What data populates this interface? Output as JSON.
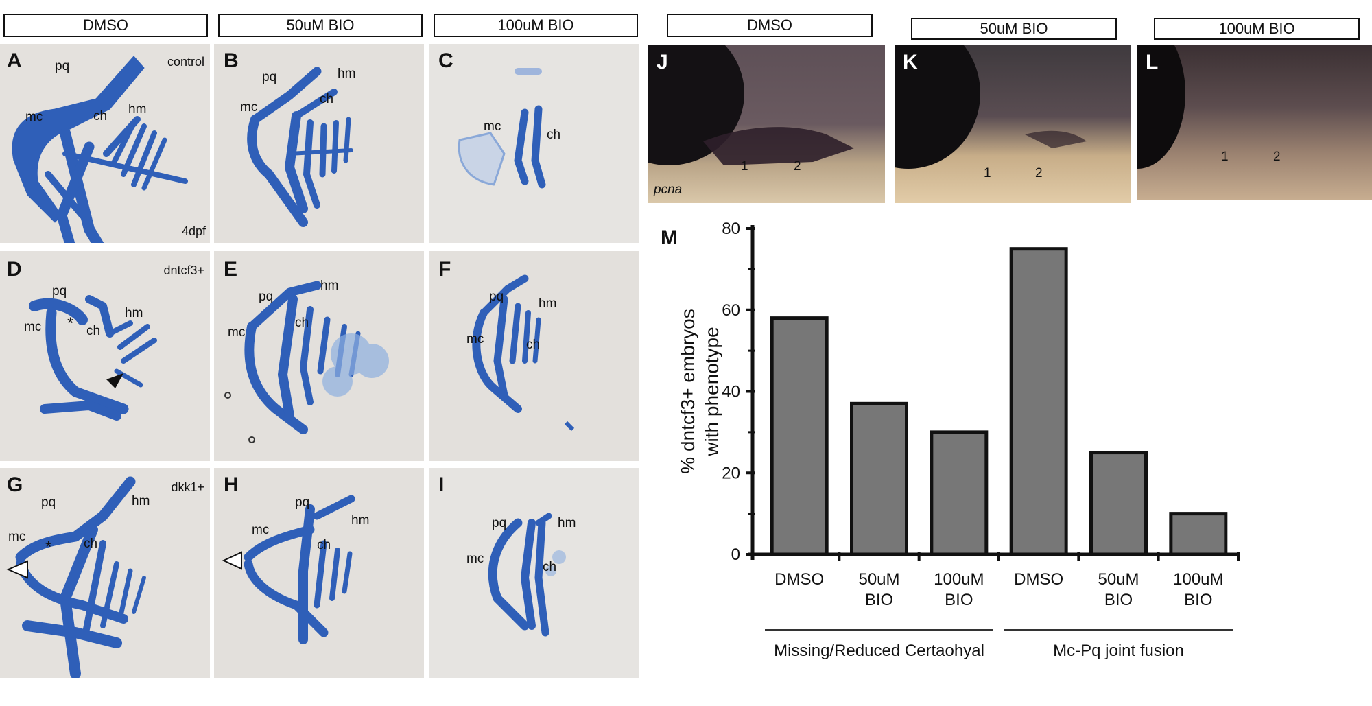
{
  "left_headers": [
    "DMSO",
    "50uM BIO",
    "100uM BIO"
  ],
  "right_headers": [
    "DMSO",
    "50uM BIO",
    "100uM BIO"
  ],
  "panels": {
    "A": {
      "label": "A",
      "tags": [
        "pq",
        "hm",
        "mc",
        "ch"
      ],
      "corner_top": "control",
      "corner_bottom": "4dpf"
    },
    "B": {
      "label": "B",
      "tags": [
        "pq",
        "hm",
        "mc",
        "ch"
      ]
    },
    "C": {
      "label": "C",
      "tags": [
        "mc",
        "ch"
      ]
    },
    "D": {
      "label": "D",
      "tags": [
        "pq",
        "hm",
        "mc",
        "ch",
        "*"
      ],
      "corner_top": "dntcf3+"
    },
    "E": {
      "label": "E",
      "tags": [
        "pq",
        "hm",
        "mc",
        "ch"
      ]
    },
    "F": {
      "label": "F",
      "tags": [
        "pq",
        "hm",
        "mc",
        "ch"
      ]
    },
    "G": {
      "label": "G",
      "tags": [
        "pq",
        "hm",
        "mc",
        "ch",
        "*"
      ],
      "corner_top": "dkk1+"
    },
    "H": {
      "label": "H",
      "tags": [
        "pq",
        "hm",
        "mc",
        "ch"
      ]
    },
    "I": {
      "label": "I",
      "tags": [
        "pq",
        "hm",
        "mc",
        "ch"
      ]
    },
    "J": {
      "label": "J",
      "tags": [
        "1",
        "2"
      ],
      "corner_bottom": "pcna"
    },
    "K": {
      "label": "K",
      "tags": [
        "1",
        "2"
      ]
    },
    "L": {
      "label": "L",
      "tags": [
        "1",
        "2"
      ]
    }
  },
  "colors": {
    "cartilage": "#2f5fb8",
    "tissue_bg": "#e6e3df",
    "bar_fill": "#777777",
    "ish_dark": "#2a2024",
    "ish_light": "#d9c6a8"
  },
  "chart_label": "M",
  "chart_data": {
    "type": "bar",
    "categories": [
      "DMSO",
      "50uM BIO",
      "100uM BIO",
      "DMSO",
      "50uM BIO",
      "100uM BIO"
    ],
    "category_lines": [
      [
        "DMSO"
      ],
      [
        "50uM",
        "BIO"
      ],
      [
        "100uM",
        "BIO"
      ],
      [
        "DMSO"
      ],
      [
        "50uM",
        "BIO"
      ],
      [
        "100uM",
        "BIO"
      ]
    ],
    "values": [
      58,
      37,
      30,
      75,
      25,
      10
    ],
    "groups": [
      {
        "name": "Missing/Reduced Certaohyal",
        "members": [
          0,
          1,
          2
        ]
      },
      {
        "name": "Mc-Pq joint fusion",
        "members": [
          3,
          4,
          5
        ]
      }
    ],
    "ylabel_line1": "% dntcf3+ embryos",
    "ylabel_line2": "with  phenotype",
    "ylim": [
      0,
      80
    ],
    "yticks": [
      0,
      20,
      40,
      60,
      80
    ],
    "grid": false
  }
}
